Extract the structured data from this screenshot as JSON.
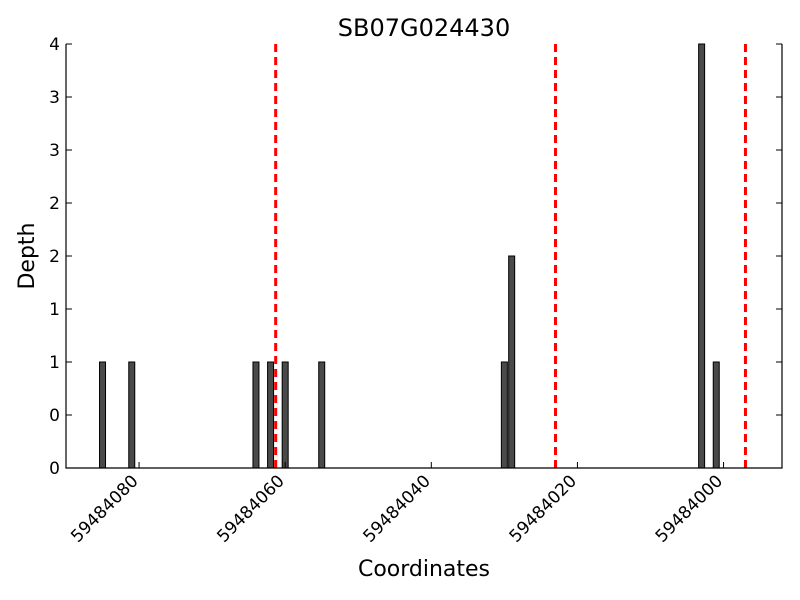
{
  "chart_data": {
    "type": "bar",
    "title": "SB07G024430",
    "xlabel": "Coordinates",
    "ylabel": "Depth",
    "x_axis_reversed": true,
    "xlim": [
      59484090,
      59483992
    ],
    "ylim": [
      0,
      4
    ],
    "y_tick_values": [
      0,
      0.5,
      1,
      1.5,
      2,
      2.5,
      3,
      3.5,
      4
    ],
    "y_tick_labels": [
      "0",
      "0",
      "1",
      "1",
      "2",
      "2",
      "3",
      "3",
      "4"
    ],
    "x_tick_values": [
      59484080,
      59484060,
      59484040,
      59484020,
      59484000
    ],
    "x_tick_labels": [
      "59484080",
      "59484060",
      "59484040",
      "59484020",
      "59484000"
    ],
    "grid": false,
    "bar_color": "#4a4a4a",
    "reference_line_color": "#ff0000",
    "series": [
      {
        "x": [
          59484085,
          59484081,
          59484064,
          59484062,
          59484060,
          59484055,
          59484030,
          59484029,
          59484003,
          59484001
        ],
        "values": [
          1,
          1,
          1,
          1,
          1,
          1,
          1,
          2,
          4,
          1
        ]
      }
    ],
    "reference_lines_x": [
      59484061.3,
      59484023.0,
      59483997.0
    ]
  }
}
